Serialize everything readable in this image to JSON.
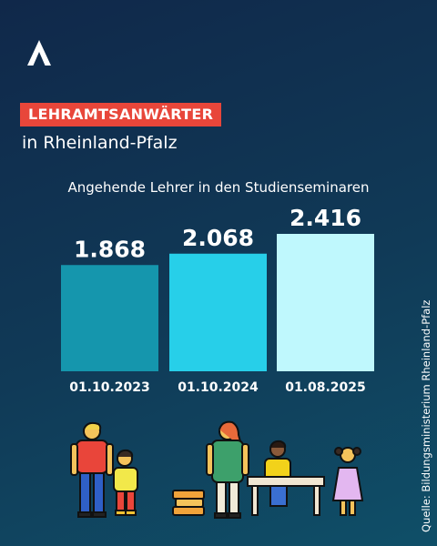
{
  "header": {
    "logo_icon": "logo-icon",
    "tag_label": "LEHRAMTSANWÄRTER",
    "subtitle": "in Rheinland-Pfalz",
    "tag_color": "#e8463a"
  },
  "chart_data": {
    "type": "bar",
    "title": "Angehende Lehrer in den Studienseminaren",
    "categories": [
      "01.10.2023",
      "01.10.2024",
      "01.08.2025"
    ],
    "values": [
      1868,
      2068,
      2416
    ],
    "value_labels": [
      "1.868",
      "2.068",
      "2.416"
    ],
    "colors": [
      "#1596ad",
      "#27cfe9",
      "#bff8fd"
    ],
    "xlabel": "",
    "ylabel": "",
    "grid": false
  },
  "source": "Quelle: Bildungsministerium Rheinland-Pfalz",
  "illustration": {
    "icons": [
      "father-icon",
      "child-icon",
      "books-icon",
      "teacher-icon",
      "student-at-desk-icon",
      "girl-icon"
    ]
  }
}
